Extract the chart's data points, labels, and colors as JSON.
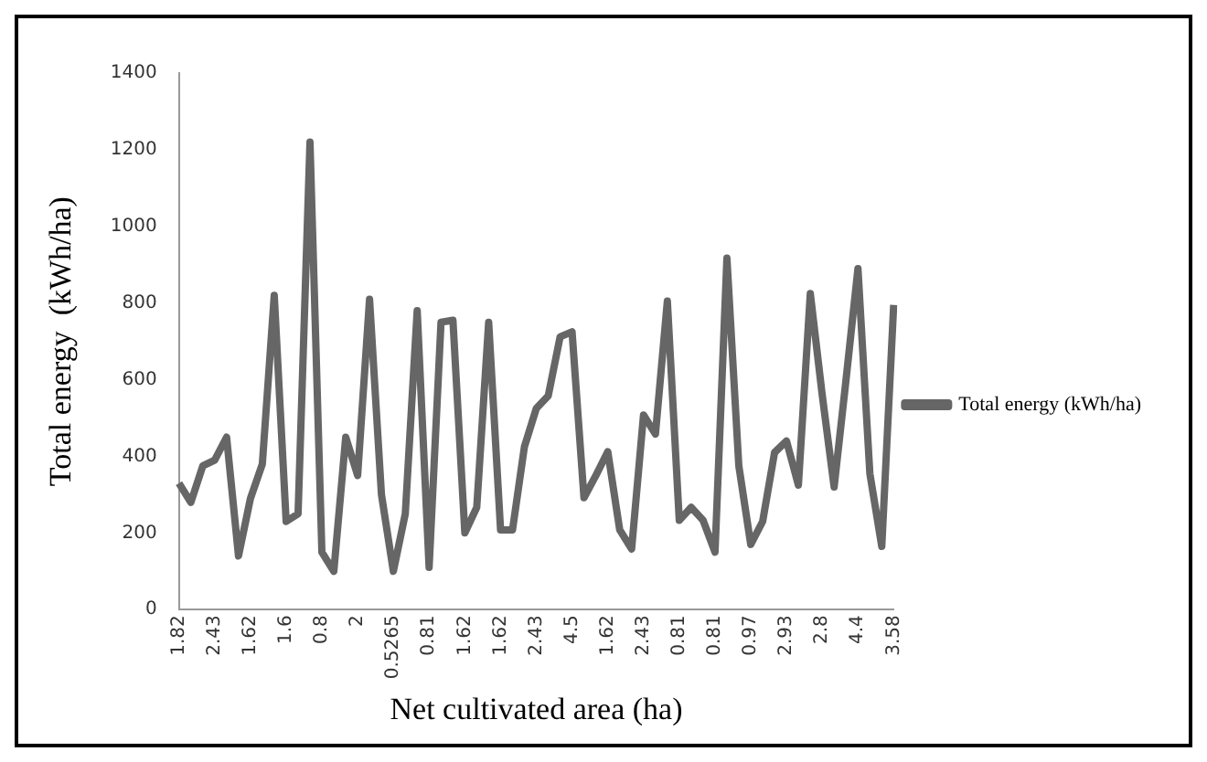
{
  "chart_data": {
    "type": "line",
    "xlabel": "Net cultivated area (ha)",
    "ylabel": "Total energy  (kWh/ha)",
    "categories": [
      "1.82",
      null,
      null,
      "2.43",
      null,
      null,
      "1.62",
      null,
      null,
      "1.6",
      null,
      null,
      "0.8",
      null,
      null,
      "2",
      null,
      null,
      "0.5265",
      null,
      null,
      "0.81",
      null,
      null,
      "1.62",
      null,
      null,
      "1.62",
      null,
      null,
      "2.43",
      null,
      null,
      "4.5",
      null,
      null,
      "1.62",
      null,
      null,
      "2.43",
      null,
      null,
      "0.81",
      null,
      null,
      "0.81",
      null,
      null,
      "0.97",
      null,
      null,
      "2.93",
      null,
      null,
      "2.8",
      null,
      null,
      "4.4",
      null,
      null,
      "3.58"
    ],
    "series": [
      {
        "name": "Total energy (kWh/ha)",
        "color": "#666666",
        "values": [
          330,
          280,
          375,
          390,
          450,
          140,
          290,
          380,
          820,
          230,
          250,
          1220,
          150,
          100,
          450,
          350,
          810,
          300,
          100,
          250,
          780,
          110,
          750,
          755,
          200,
          267,
          750,
          208,
          208,
          425,
          525,
          558,
          712,
          725,
          292,
          350,
          412,
          208,
          158,
          508,
          458,
          805,
          233,
          267,
          233,
          150,
          917,
          375,
          170,
          230,
          410,
          440,
          325,
          825,
          560,
          320,
          600,
          890,
          355,
          165,
          795
        ]
      }
    ],
    "ylim": [
      0,
      1400
    ],
    "yticks": [
      0,
      200,
      400,
      600,
      800,
      1000,
      1200,
      1400
    ],
    "grid": false,
    "legend": "right",
    "marker": "none",
    "line_style": "solid"
  }
}
